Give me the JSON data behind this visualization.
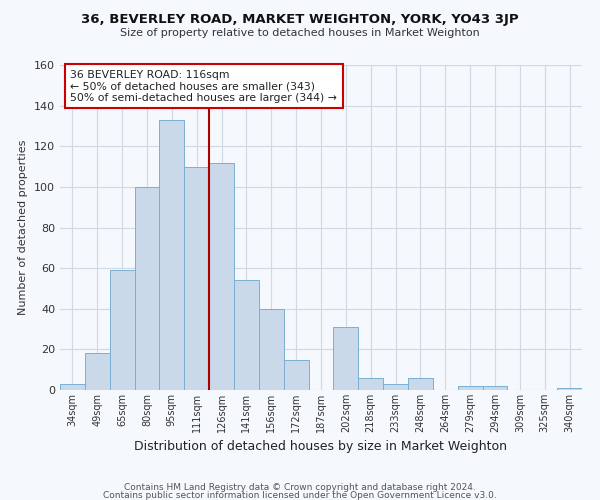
{
  "title": "36, BEVERLEY ROAD, MARKET WEIGHTON, YORK, YO43 3JP",
  "subtitle": "Size of property relative to detached houses in Market Weighton",
  "xlabel": "Distribution of detached houses by size in Market Weighton",
  "ylabel": "Number of detached properties",
  "footer_lines": [
    "Contains HM Land Registry data © Crown copyright and database right 2024.",
    "Contains public sector information licensed under the Open Government Licence v3.0."
  ],
  "bar_labels": [
    "34sqm",
    "49sqm",
    "65sqm",
    "80sqm",
    "95sqm",
    "111sqm",
    "126sqm",
    "141sqm",
    "156sqm",
    "172sqm",
    "187sqm",
    "202sqm",
    "218sqm",
    "233sqm",
    "248sqm",
    "264sqm",
    "279sqm",
    "294sqm",
    "309sqm",
    "325sqm",
    "340sqm"
  ],
  "bar_values": [
    3,
    18,
    59,
    100,
    133,
    110,
    112,
    54,
    40,
    15,
    0,
    31,
    6,
    3,
    6,
    0,
    2,
    2,
    0,
    0,
    1
  ],
  "bar_color": "#c9d9ea",
  "bar_edge_color": "#7bafd4",
  "grid_color": "#d0d8e4",
  "background_color": "#f5f8fc",
  "vline_color": "#aa0000",
  "annotation_box_color": "#ffffff",
  "annotation_border_color": "#cc0000",
  "annotation_text_line1": "36 BEVERLEY ROAD: 116sqm",
  "annotation_text_line2": "← 50% of detached houses are smaller (343)",
  "annotation_text_line3": "50% of semi-detached houses are larger (344) →",
  "ylim": [
    0,
    160
  ],
  "yticks": [
    0,
    20,
    40,
    60,
    80,
    100,
    120,
    140,
    160
  ]
}
